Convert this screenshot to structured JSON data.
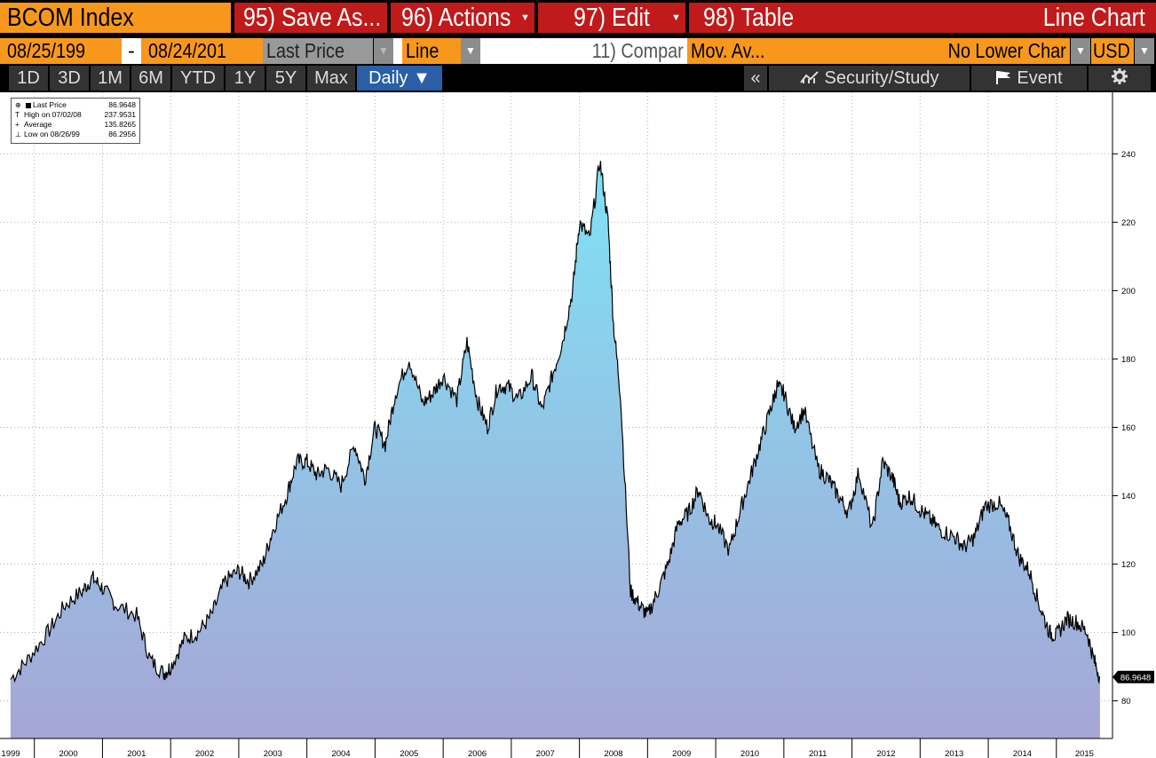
{
  "header": {
    "security": "BCOM Index",
    "save_as": "95) Save As...",
    "actions": "96) Actions",
    "edit": "97) Edit",
    "table": "98) Table",
    "view_type": "Line Chart"
  },
  "controls": {
    "start_date": "08/25/199",
    "dash": "-",
    "end_date": "08/24/201",
    "field": "Last Price",
    "style": "Line",
    "compare": "11) Compar",
    "mov_avg": "Mov. Av...",
    "lower_chart": "No Lower Char",
    "currency": "USD"
  },
  "toolbar": {
    "periods": [
      "1D",
      "3D",
      "1M",
      "6M",
      "YTD",
      "1Y",
      "5Y",
      "Max"
    ],
    "frequency": "Daily ▼",
    "collapse": "«",
    "security_study": "Security/Study",
    "event": "Event"
  },
  "icons": {
    "dropdown": "chevron-down-icon",
    "security_study": "line-chart-icon",
    "event": "flag-icon",
    "settings": "gear-icon"
  },
  "colors": {
    "bloomberg_orange": "#f7981d",
    "bloomberg_red": "#c01a1a",
    "active_blue": "#2a5fa8",
    "area_top": "#7fe2f5",
    "area_bottom": "#a6a6d6"
  },
  "legend": {
    "rows": [
      {
        "label": "Last Price",
        "value": "86.9648"
      },
      {
        "label": "High on 07/02/08",
        "value": "237.9531"
      },
      {
        "label": "Average",
        "value": "135.8265"
      },
      {
        "label": "Low on 08/26/99",
        "value": "86.2956"
      }
    ]
  },
  "chart_data": {
    "type": "area",
    "series": [
      {
        "name": "Last Price",
        "x": [
          1999.65,
          1999.9,
          2000.2,
          2000.45,
          2000.7,
          2000.85,
          2001.0,
          2001.2,
          2001.5,
          2001.7,
          2001.9,
          2002.0,
          2002.2,
          2002.4,
          2002.6,
          2002.8,
          2003.0,
          2003.15,
          2003.35,
          2003.5,
          2003.7,
          2003.85,
          2004.0,
          2004.15,
          2004.3,
          2004.5,
          2004.7,
          2004.85,
          2005.0,
          2005.15,
          2005.3,
          2005.5,
          2005.7,
          2005.85,
          2006.0,
          2006.2,
          2006.35,
          2006.5,
          2006.65,
          2006.8,
          2006.95,
          2007.1,
          2007.3,
          2007.45,
          2007.6,
          2007.75,
          2007.9,
          2008.0,
          2008.15,
          2008.3,
          2008.42,
          2008.5,
          2008.6,
          2008.75,
          2008.88,
          2009.0,
          2009.15,
          2009.3,
          2009.45,
          2009.6,
          2009.75,
          2009.9,
          2010.0,
          2010.2,
          2010.35,
          2010.5,
          2010.65,
          2010.8,
          2010.9,
          2011.0,
          2011.15,
          2011.3,
          2011.5,
          2011.65,
          2011.8,
          2011.95,
          2012.1,
          2012.3,
          2012.45,
          2012.6,
          2012.7,
          2012.85,
          2013.0,
          2013.15,
          2013.3,
          2013.5,
          2013.65,
          2013.8,
          2013.95,
          2014.15,
          2014.3,
          2014.45,
          2014.6,
          2014.75,
          2014.9,
          2015.0,
          2015.15,
          2015.3,
          2015.45,
          2015.55,
          2015.64
        ],
        "y": [
          86.3,
          92,
          100,
          108,
          112,
          116,
          113,
          108,
          105,
          92,
          88,
          90,
          98,
          100,
          105,
          115,
          118,
          115,
          120,
          130,
          140,
          150,
          150,
          146,
          148,
          143,
          155,
          145,
          160,
          155,
          170,
          180,
          167,
          170,
          175,
          168,
          185,
          168,
          160,
          172,
          172,
          168,
          175,
          165,
          175,
          185,
          200,
          220,
          215,
          238,
          220,
          190,
          170,
          112,
          108,
          105,
          112,
          120,
          132,
          135,
          142,
          133,
          132,
          124,
          135,
          145,
          155,
          165,
          172,
          170,
          160,
          165,
          148,
          145,
          140,
          135,
          147,
          130,
          150,
          145,
          138,
          140,
          136,
          133,
          130,
          128,
          125,
          128,
          137,
          138,
          132,
          122,
          118,
          108,
          100,
          99,
          104,
          103,
          100,
          92,
          86.9648
        ]
      }
    ],
    "x_ticks": [
      "1999",
      "2000",
      "2001",
      "2002",
      "2003",
      "2004",
      "2005",
      "2006",
      "2007",
      "2008",
      "2009",
      "2010",
      "2011",
      "2012",
      "2013",
      "2014",
      "2015"
    ],
    "y_ticks": [
      80,
      100,
      120,
      140,
      160,
      180,
      200,
      220,
      240
    ],
    "last_value_label": "86.9648",
    "xlim": [
      1999.6,
      2015.68
    ],
    "ylim": [
      69,
      258
    ],
    "grid": true,
    "legend_position": "top-left"
  }
}
